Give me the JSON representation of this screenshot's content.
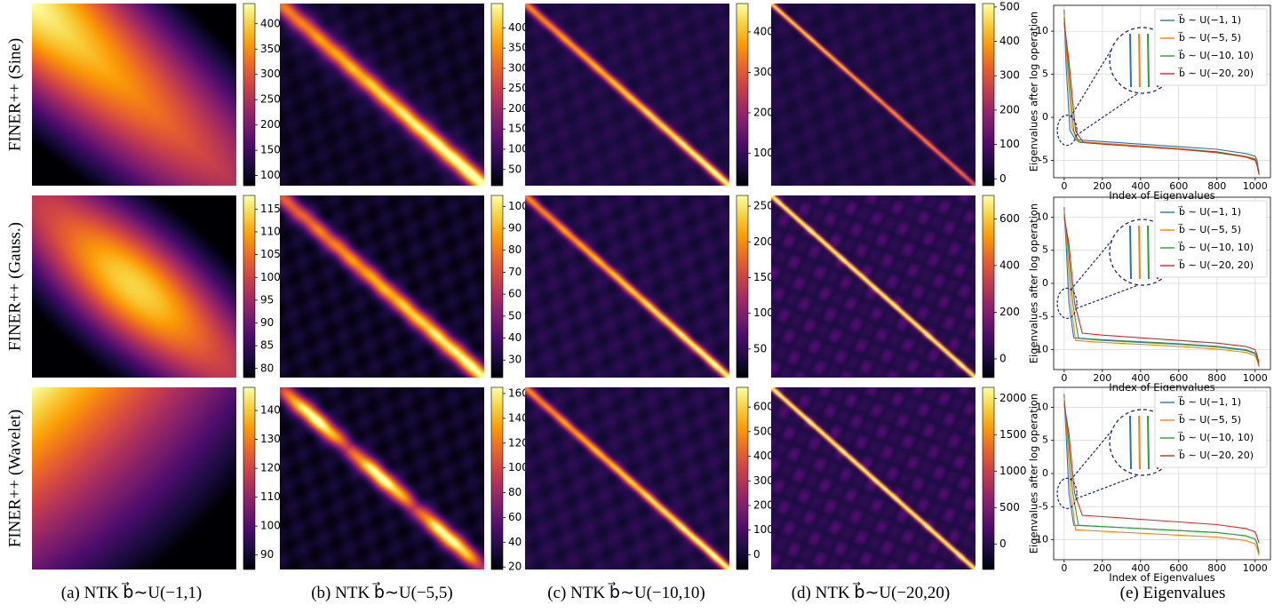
{
  "colors": {
    "inferno": [
      "#000004",
      "#1b0c41",
      "#4a0c6b",
      "#781c6d",
      "#a52c60",
      "#cf4446",
      "#ed6925",
      "#fb9b06",
      "#f7d13d",
      "#fcffa4"
    ],
    "series": [
      "#1f77b4",
      "#ff7f0e",
      "#2ca02c",
      "#d62728"
    ],
    "zoom_circle": "#1a2a6c"
  },
  "row_labels": [
    "FINER++ (Sine)",
    "FINER++ (Gauss.)",
    "FINER++ (Wavelet)"
  ],
  "col_captions": [
    "(a) NTK b⃗∼U(−1,1)",
    "(b) NTK b⃗∼U(−5,5)",
    "(c) NTK b⃗∼U(−10,10)",
    "(d) NTK b⃗∼U(−20,20)",
    "(e) Eigenvalues"
  ],
  "chart_data": [
    {
      "type": "heatmap",
      "title": "",
      "panels": [
        {
          "row": "FINER++ (Sine)",
          "col": "(a)",
          "colorbar_ticks": [
            100,
            150,
            200,
            250,
            300,
            350,
            400
          ],
          "range": [
            80,
            440
          ],
          "pattern": "broad-diagonal, peak top-left"
        },
        {
          "row": "FINER++ (Sine)",
          "col": "(b)",
          "colorbar_ticks": [
            50,
            100,
            150,
            200,
            250,
            300,
            350,
            400
          ],
          "range": [
            10,
            460
          ],
          "pattern": "diagonal band"
        },
        {
          "row": "FINER++ (Sine)",
          "col": "(c)",
          "colorbar_ticks": [
            100,
            200,
            300,
            400
          ],
          "range": [
            20,
            470
          ],
          "pattern": "narrow diagonal"
        },
        {
          "row": "FINER++ (Sine)",
          "col": "(d)",
          "colorbar_ticks": [
            0,
            100,
            200,
            300,
            400,
            500
          ],
          "range": [
            -20,
            510
          ],
          "pattern": "thin diagonal"
        },
        {
          "row": "FINER++ (Gauss.)",
          "col": "(a)",
          "colorbar_ticks": [
            80,
            85,
            90,
            95,
            100,
            105,
            110,
            115
          ],
          "range": [
            78,
            118
          ],
          "pattern": "broad elliptical diagonal"
        },
        {
          "row": "FINER++ (Gauss.)",
          "col": "(b)",
          "colorbar_ticks": [
            30,
            40,
            50,
            60,
            70,
            80,
            90,
            100
          ],
          "range": [
            22,
            105
          ],
          "pattern": "diagonal band"
        },
        {
          "row": "FINER++ (Gauss.)",
          "col": "(c)",
          "colorbar_ticks": [
            50,
            100,
            150,
            200,
            250
          ],
          "range": [
            10,
            265
          ],
          "pattern": "narrow diagonal"
        },
        {
          "row": "FINER++ (Gauss.)",
          "col": "(d)",
          "colorbar_ticks": [
            0,
            200,
            400,
            600
          ],
          "range": [
            -80,
            700
          ],
          "pattern": "thin diagonal, noisy"
        },
        {
          "row": "FINER++ (Wavelet)",
          "col": "(a)",
          "colorbar_ticks": [
            90,
            100,
            110,
            120,
            130,
            140
          ],
          "range": [
            85,
            148
          ],
          "pattern": "smooth, peak top-left"
        },
        {
          "row": "FINER++ (Wavelet)",
          "col": "(b)",
          "colorbar_ticks": [
            20,
            40,
            60,
            80,
            100,
            120,
            140,
            160
          ],
          "range": [
            18,
            165
          ],
          "pattern": "diagonal with blobs"
        },
        {
          "row": "FINER++ (Wavelet)",
          "col": "(c)",
          "colorbar_ticks": [
            0,
            100,
            200,
            300,
            400,
            500,
            600
          ],
          "range": [
            -60,
            680
          ],
          "pattern": "narrow diagonal"
        },
        {
          "row": "FINER++ (Wavelet)",
          "col": "(d)",
          "colorbar_ticks": [
            0,
            500,
            1000,
            1500,
            2000
          ],
          "range": [
            -350,
            2150
          ],
          "pattern": "thin diagonal, noisy"
        }
      ]
    },
    {
      "type": "line",
      "title": "",
      "xlabel": "Index of Eigenvalues",
      "ylabel": "Eigenvalues after log operation",
      "x_ticks": [
        0,
        200,
        400,
        600,
        800,
        1000
      ],
      "xlim": [
        -55,
        1080
      ],
      "legend": [
        "b⃗ ∼ U(−1, 1)",
        "b⃗ ∼ U(−5, 5)",
        "b⃗ ∼ U(−10, 10)",
        "b⃗ ∼ U(−20, 20)"
      ],
      "legend_position": "top-right",
      "grid": true,
      "panels": [
        {
          "row": "FINER++ (Sine)",
          "ylim": [
            -7,
            13
          ],
          "y_ticks": [
            -5,
            0,
            5,
            10
          ],
          "series": [
            {
              "name": "b⃗ ∼ U(−1, 1)",
              "x": [
                0,
                10,
                30,
                60,
                200,
                400,
                600,
                800,
                950,
                1000,
                1010,
                1020
              ],
              "y": [
                12.5,
                6,
                -1.5,
                -2.6,
                -2.8,
                -3.1,
                -3.4,
                -3.7,
                -4.2,
                -4.5,
                -5,
                -6.5
              ]
            },
            {
              "name": "b⃗ ∼ U(−5, 5)",
              "x": [
                0,
                15,
                40,
                70,
                200,
                400,
                600,
                800,
                950,
                1000,
                1010,
                1020
              ],
              "y": [
                12,
                6.5,
                -1.2,
                -2.8,
                -3,
                -3.3,
                -3.6,
                -4,
                -4.5,
                -4.8,
                -5.4,
                -6.6
              ]
            },
            {
              "name": "b⃗ ∼ U(−10, 10)",
              "x": [
                0,
                20,
                50,
                80,
                200,
                400,
                600,
                800,
                950,
                1000,
                1010,
                1020
              ],
              "y": [
                11.5,
                6.5,
                -1.6,
                -2.9,
                -3.1,
                -3.4,
                -3.7,
                -4.1,
                -4.6,
                -5,
                -5.6,
                -6.7
              ]
            },
            {
              "name": "b⃗ ∼ U(−20, 20)",
              "x": [
                0,
                25,
                60,
                100,
                200,
                400,
                600,
                800,
                950,
                1000,
                1010,
                1020
              ],
              "y": [
                11,
                6.5,
                -1.6,
                -2.9,
                -3.1,
                -3.4,
                -3.7,
                -4,
                -4.6,
                -4.9,
                -5.5,
                -6.5
              ]
            }
          ]
        },
        {
          "row": "FINER++ (Gauss.)",
          "ylim": [
            -13,
            13
          ],
          "y_ticks": [
            -10,
            -5,
            0,
            5,
            10
          ],
          "series": [
            {
              "name": "b⃗ ∼ U(−1, 1)",
              "x": [
                0,
                10,
                25,
                50,
                200,
                400,
                600,
                800,
                950,
                1000,
                1010,
                1020
              ],
              "y": [
                11.5,
                6,
                -3,
                -8.2,
                -8.5,
                -8.8,
                -9.1,
                -9.5,
                -10,
                -10.5,
                -11.2,
                -12.5
              ]
            },
            {
              "name": "b⃗ ∼ U(−5, 5)",
              "x": [
                0,
                15,
                35,
                60,
                200,
                400,
                600,
                800,
                950,
                1000,
                1010,
                1020
              ],
              "y": [
                11,
                6,
                -3,
                -8.6,
                -8.9,
                -9.2,
                -9.5,
                -9.9,
                -10.4,
                -10.9,
                -11.6,
                -12.6
              ]
            },
            {
              "name": "b⃗ ∼ U(−10, 10)",
              "x": [
                0,
                20,
                45,
                75,
                200,
                400,
                600,
                800,
                950,
                1000,
                1010,
                1020
              ],
              "y": [
                10.5,
                6,
                -3,
                -8.3,
                -8.6,
                -8.9,
                -9.2,
                -9.6,
                -10.1,
                -10.6,
                -11.3,
                -12.4
              ]
            },
            {
              "name": "b⃗ ∼ U(−20, 20)",
              "x": [
                0,
                25,
                55,
                95,
                200,
                400,
                600,
                800,
                950,
                1000,
                1010,
                1020
              ],
              "y": [
                10,
                6,
                -3,
                -7.5,
                -7.8,
                -8.2,
                -8.6,
                -9,
                -9.5,
                -10,
                -10.8,
                -12
              ]
            }
          ]
        },
        {
          "row": "FINER++ (Wavelet)",
          "ylim": [
            -13,
            13
          ],
          "y_ticks": [
            -10,
            -5,
            0,
            5,
            10
          ],
          "series": [
            {
              "name": "b⃗ ∼ U(−1, 1)",
              "x": [
                0,
                10,
                25,
                50,
                200,
                400,
                600,
                800,
                950,
                1000,
                1010,
                1020
              ],
              "y": [
                12,
                6,
                -3,
                -7.8,
                -8,
                -8.3,
                -8.6,
                -8.9,
                -9.4,
                -9.9,
                -10.6,
                -12
              ]
            },
            {
              "name": "b⃗ ∼ U(−5, 5)",
              "x": [
                0,
                15,
                35,
                60,
                200,
                400,
                600,
                800,
                950,
                1000,
                1010,
                1020
              ],
              "y": [
                11.5,
                6,
                -3,
                -8.5,
                -8.7,
                -9,
                -9.3,
                -9.6,
                -10.1,
                -10.6,
                -11.3,
                -12.4
              ]
            },
            {
              "name": "b⃗ ∼ U(−10, 10)",
              "x": [
                0,
                20,
                45,
                75,
                200,
                400,
                600,
                800,
                950,
                1000,
                1010,
                1020
              ],
              "y": [
                11,
                6,
                -3,
                -7.8,
                -8,
                -8.3,
                -8.6,
                -8.9,
                -9.4,
                -9.9,
                -10.6,
                -12
              ]
            },
            {
              "name": "b⃗ ∼ U(−20, 20)",
              "x": [
                0,
                25,
                55,
                95,
                200,
                400,
                600,
                800,
                950,
                1000,
                1010,
                1020
              ],
              "y": [
                10.5,
                6,
                -3,
                -6.3,
                -6.5,
                -6.9,
                -7.3,
                -7.7,
                -8.3,
                -8.8,
                -9.6,
                -10.5
              ]
            }
          ]
        }
      ]
    }
  ]
}
